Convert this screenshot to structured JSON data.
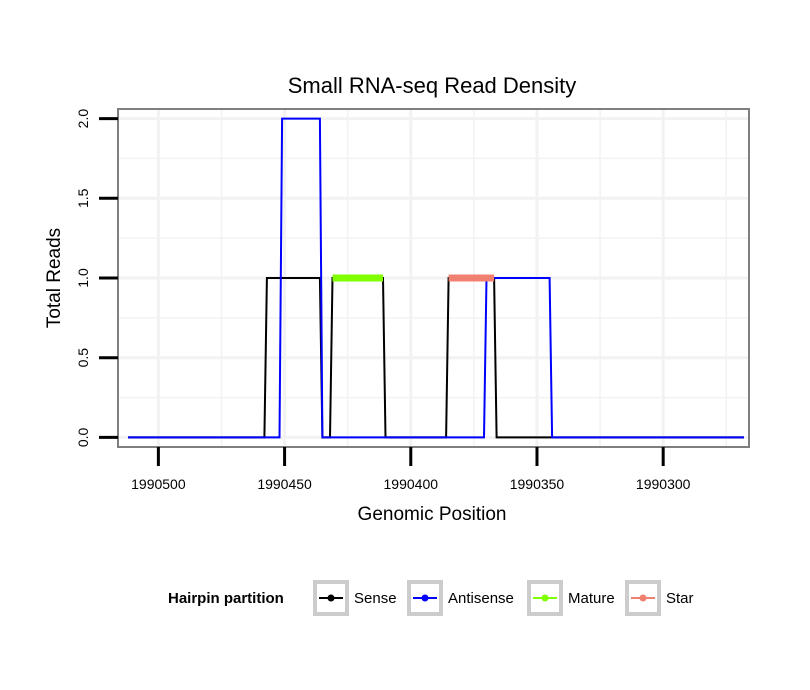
{
  "chart_data": {
    "type": "line",
    "title": "Small RNA-seq Read Density",
    "xlabel": "Genomic Position",
    "ylabel": "Total Reads",
    "x_reversed": true,
    "xlim": [
      1990516,
      1990266
    ],
    "ylim": [
      -0.06,
      2.06
    ],
    "x_ticks": [
      {
        "value": 1990500,
        "label": "1990500"
      },
      {
        "value": 1990450,
        "label": "1990450"
      },
      {
        "value": 1990400,
        "label": "1990400"
      },
      {
        "value": 1990350,
        "label": "1990350"
      },
      {
        "value": 1990300,
        "label": "1990300"
      }
    ],
    "y_ticks": [
      {
        "value": 0,
        "label": "0.0"
      },
      {
        "value": 0.5,
        "label": "0.5"
      },
      {
        "value": 1,
        "label": "1.0"
      },
      {
        "value": 1.5,
        "label": "1.5"
      },
      {
        "value": 2,
        "label": "2.0"
      }
    ],
    "grid": true,
    "legend": {
      "title": "Hairpin partition",
      "position": "bottom"
    },
    "series": [
      {
        "name": "Sense",
        "color": "#000000",
        "width": "thin",
        "x": [
          1990512,
          1990458,
          1990457,
          1990436,
          1990435,
          1990432,
          1990431,
          1990411,
          1990410,
          1990386,
          1990385,
          1990367,
          1990366,
          1990268
        ],
        "y": [
          0,
          0,
          1,
          1,
          0,
          0,
          1,
          1,
          0,
          0,
          1,
          1,
          0,
          0
        ]
      },
      {
        "name": "Antisense",
        "color": "#0000ff",
        "width": "thin",
        "x": [
          1990512,
          1990452,
          1990451,
          1990436,
          1990435,
          1990431,
          1990430,
          1990371,
          1990370,
          1990345,
          1990344,
          1990268
        ],
        "y": [
          0,
          0,
          2,
          2,
          0,
          0,
          0,
          0,
          1,
          1,
          0,
          0
        ]
      },
      {
        "name": "Mature",
        "color": "#7fff00",
        "width": "thick",
        "x": [
          1990431,
          1990411
        ],
        "y": [
          1,
          1
        ]
      },
      {
        "name": "Star",
        "color": "#f08070",
        "width": "thick",
        "x": [
          1990385,
          1990367
        ],
        "y": [
          1,
          1
        ]
      }
    ]
  }
}
